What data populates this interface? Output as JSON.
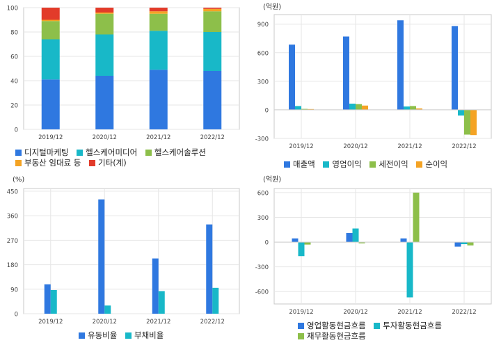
{
  "colors": {
    "blue": "#2f78e0",
    "cyan": "#18b8c8",
    "green": "#8dbf4a",
    "orange": "#f4a324",
    "red": "#e23b2a",
    "grid": "#e6e6e6",
    "frame": "#c8c8c8"
  },
  "chart_data": [
    {
      "type": "bar",
      "stacked": true,
      "title": "",
      "unit_label": "",
      "categories": [
        "2019/12",
        "2020/12",
        "2021/12",
        "2022/12"
      ],
      "ylim": [
        0,
        100
      ],
      "yticks": [
        "0",
        "20",
        "40",
        "60",
        "80",
        "100"
      ],
      "grid": true,
      "legend_position": "bottom",
      "series": [
        {
          "name": "디지털마케팅",
          "color_key": "blue",
          "values": [
            41,
            44,
            49,
            48
          ]
        },
        {
          "name": "헬스케어미디어",
          "color_key": "cyan",
          "values": [
            33,
            34,
            32,
            32
          ]
        },
        {
          "name": "헬스케어솔루션",
          "color_key": "green",
          "values": [
            15,
            17,
            14,
            17
          ]
        },
        {
          "name": "부동산 임대료 등",
          "color_key": "orange",
          "values": [
            1,
            1,
            2,
            2
          ]
        },
        {
          "name": "기타(계)",
          "color_key": "red",
          "values": [
            10,
            4,
            3,
            1
          ]
        }
      ]
    },
    {
      "type": "bar",
      "stacked": false,
      "title": "",
      "unit_label": "(억원)",
      "categories": [
        "2019/12",
        "2020/12",
        "2021/12",
        "2022/12"
      ],
      "ylim": [
        -300,
        1000
      ],
      "yticks": [
        "-300",
        "0",
        "300",
        "600",
        "900"
      ],
      "grid": true,
      "legend_position": "bottom",
      "series": [
        {
          "name": "매출액",
          "color_key": "blue",
          "values": [
            685,
            770,
            940,
            880
          ]
        },
        {
          "name": "영업이익",
          "color_key": "cyan",
          "values": [
            40,
            65,
            35,
            -60
          ]
        },
        {
          "name": "세전이익",
          "color_key": "green",
          "values": [
            10,
            60,
            40,
            -260
          ]
        },
        {
          "name": "순이익",
          "color_key": "orange",
          "values": [
            8,
            45,
            15,
            -265
          ]
        }
      ]
    },
    {
      "type": "bar",
      "stacked": false,
      "title": "",
      "unit_label": "(%)",
      "categories": [
        "2019/12",
        "2020/12",
        "2021/12",
        "2022/12"
      ],
      "ylim": [
        0,
        460
      ],
      "yticks": [
        "0",
        "90",
        "180",
        "270",
        "360",
        "450"
      ],
      "grid": true,
      "legend_position": "bottom",
      "series": [
        {
          "name": "유동비율",
          "color_key": "blue",
          "values": [
            108,
            420,
            203,
            328
          ]
        },
        {
          "name": "부채비율",
          "color_key": "cyan",
          "values": [
            87,
            30,
            83,
            95
          ]
        }
      ]
    },
    {
      "type": "bar",
      "stacked": false,
      "title": "",
      "unit_label": "(억원)",
      "categories": [
        "2019/12",
        "2020/12",
        "2021/12",
        "2022/12"
      ],
      "ylim": [
        -750,
        650
      ],
      "yticks": [
        "-600",
        "-300",
        "0",
        "300",
        "600"
      ],
      "grid": true,
      "legend_position": "bottom",
      "series": [
        {
          "name": "영업활동현금흐름",
          "color_key": "blue",
          "values": [
            45,
            110,
            45,
            -55
          ]
        },
        {
          "name": "투자활동현금흐름",
          "color_key": "cyan",
          "values": [
            -170,
            165,
            -670,
            -25
          ]
        },
        {
          "name": "재무활동현금흐름",
          "color_key": "green",
          "values": [
            -30,
            -15,
            600,
            -40
          ]
        }
      ]
    }
  ]
}
